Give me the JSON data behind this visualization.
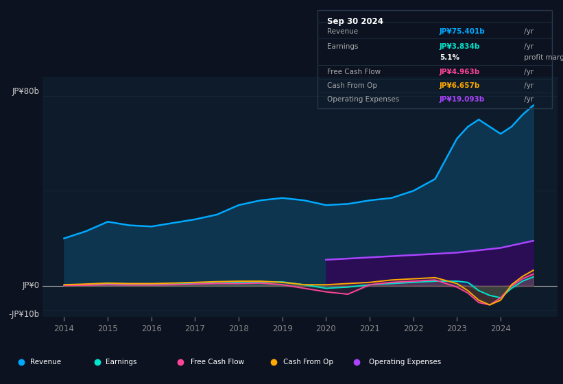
{
  "bg_color": "#0c1220",
  "chart_bg": "#0d1b2a",
  "ylim": [
    -13,
    88
  ],
  "xlim": [
    2013.5,
    2025.3
  ],
  "years": [
    2014.0,
    2014.5,
    2015.0,
    2015.5,
    2016.0,
    2016.5,
    2017.0,
    2017.5,
    2018.0,
    2018.5,
    2019.0,
    2019.5,
    2020.0,
    2020.5,
    2021.0,
    2021.5,
    2022.0,
    2022.5,
    2023.0,
    2023.25,
    2023.5,
    2023.75,
    2024.0,
    2024.25,
    2024.5,
    2024.75
  ],
  "revenue": [
    20,
    23,
    27,
    25.5,
    25,
    26.5,
    28,
    30,
    34,
    36,
    37,
    36,
    34,
    34.5,
    36,
    37,
    40,
    45,
    62,
    67,
    70,
    67,
    64,
    67,
    72,
    76
  ],
  "earnings": [
    0.3,
    0.5,
    0.9,
    0.7,
    0.6,
    0.7,
    1.0,
    1.2,
    1.5,
    1.6,
    1.7,
    0.5,
    -1.0,
    -0.5,
    0.5,
    1.0,
    1.5,
    2.0,
    2.0,
    1.5,
    -2.0,
    -4.0,
    -5.0,
    -1.0,
    2.0,
    3.8
  ],
  "free_cash_flow": [
    0.2,
    0.3,
    0.5,
    0.4,
    0.4,
    0.5,
    0.8,
    1.0,
    1.0,
    1.2,
    0.5,
    -1.0,
    -2.5,
    -3.5,
    0.5,
    1.5,
    2.0,
    2.5,
    -0.5,
    -3.0,
    -7.0,
    -8.0,
    -5.0,
    0.0,
    3.0,
    5.0
  ],
  "cash_from_op": [
    0.5,
    0.8,
    1.2,
    1.0,
    1.0,
    1.2,
    1.5,
    1.8,
    2.0,
    2.0,
    1.5,
    0.5,
    0.5,
    1.0,
    1.5,
    2.5,
    3.0,
    3.5,
    1.0,
    -2.0,
    -6.0,
    -8.0,
    -6.0,
    0.5,
    4.0,
    6.6
  ],
  "op_expenses": [
    0,
    0,
    0,
    0,
    0,
    0,
    0,
    0,
    0,
    0,
    0,
    0,
    11,
    11.5,
    12,
    12.5,
    13,
    13.5,
    14,
    14.5,
    15,
    15.5,
    16,
    17,
    18,
    19
  ],
  "revenue_color": "#00aaff",
  "revenue_fill": "#0d3550",
  "earnings_color": "#00e5cc",
  "free_cash_flow_color": "#ff4499",
  "cash_from_op_color": "#ffaa00",
  "op_expenses_color": "#aa44ff",
  "op_expenses_fill": "#2a0d55",
  "grid_color": "#1a2a3a",
  "zero_line_color": "#aaaaaa",
  "text_color": "#aaaaaa",
  "ylabel_color": "#cccccc",
  "xtick_color": "#888888",
  "info_bg": "#050d15",
  "info_border": "#2a3a4a",
  "info_title": "Sep 30 2024",
  "info_rows": [
    {
      "label": "Revenue",
      "value": "JP¥75.401b",
      "suffix": " /yr",
      "color": "#00aaff",
      "indent": false
    },
    {
      "label": "Earnings",
      "value": "JP¥3.834b",
      "suffix": " /yr",
      "color": "#00e5cc",
      "indent": false
    },
    {
      "label": "",
      "value": "5.1%",
      "suffix": " profit margin",
      "color": "#ffffff",
      "indent": true
    },
    {
      "label": "Free Cash Flow",
      "value": "JP¥4.963b",
      "suffix": " /yr",
      "color": "#ff4499",
      "indent": false
    },
    {
      "label": "Cash From Op",
      "value": "JP¥6.657b",
      "suffix": " /yr",
      "color": "#ffaa00",
      "indent": false
    },
    {
      "label": "Operating Expenses",
      "value": "JP¥19.093b",
      "suffix": " /yr",
      "color": "#aa44ff",
      "indent": false
    }
  ],
  "legend_items": [
    {
      "label": "Revenue",
      "color": "#00aaff"
    },
    {
      "label": "Earnings",
      "color": "#00e5cc"
    },
    {
      "label": "Free Cash Flow",
      "color": "#ff4499"
    },
    {
      "label": "Cash From Op",
      "color": "#ffaa00"
    },
    {
      "label": "Operating Expenses",
      "color": "#aa44ff"
    }
  ]
}
